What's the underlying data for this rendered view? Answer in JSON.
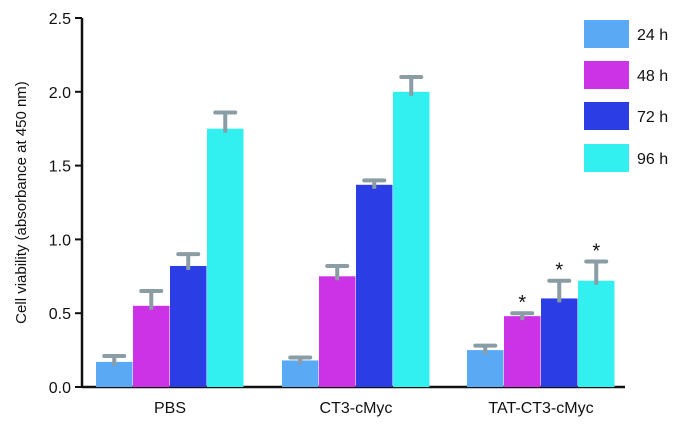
{
  "chart_data": {
    "type": "bar",
    "title": "",
    "xlabel": "",
    "ylabel": "Cell viability (absorbance at 450 nm)",
    "ylim": [
      0,
      2.5
    ],
    "yticks": [
      "0.0",
      "0.5",
      "1.0",
      "1.5",
      "2.0",
      "2.5"
    ],
    "categories": [
      "PBS",
      "CT3-cMyc",
      "TAT-CT3-cMyc"
    ],
    "legend_position": "top-right",
    "series": [
      {
        "name": "24 h",
        "color": "#5aa9f5",
        "values": [
          0.17,
          0.18,
          0.25
        ],
        "errors": [
          0.04,
          0.02,
          0.03
        ],
        "significance": [
          "",
          "",
          ""
        ]
      },
      {
        "name": "48 h",
        "color": "#cc33e6",
        "values": [
          0.55,
          0.75,
          0.48
        ],
        "errors": [
          0.1,
          0.07,
          0.02
        ],
        "significance": [
          "",
          "",
          "*"
        ]
      },
      {
        "name": "72 h",
        "color": "#2b3ee6",
        "values": [
          0.82,
          1.37,
          0.6
        ],
        "errors": [
          0.08,
          0.03,
          0.12
        ],
        "significance": [
          "",
          "",
          "*"
        ]
      },
      {
        "name": "96 h",
        "color": "#33f0f0",
        "values": [
          1.75,
          2.0,
          0.72
        ],
        "errors": [
          0.11,
          0.1,
          0.13
        ],
        "significance": [
          "",
          "",
          "*"
        ]
      }
    ],
    "error_bar_color": "#8a9ca4"
  }
}
